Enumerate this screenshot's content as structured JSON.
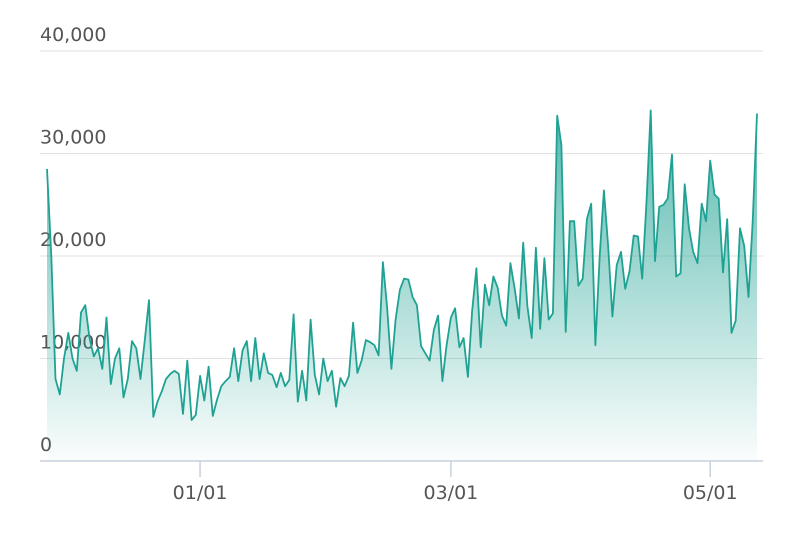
{
  "chart_data": {
    "type": "area",
    "x": [
      "11/26",
      "11/27",
      "11/28",
      "11/29",
      "11/30",
      "12/01",
      "12/02",
      "12/03",
      "12/04",
      "12/05",
      "12/06",
      "12/07",
      "12/08",
      "12/09",
      "12/10",
      "12/11",
      "12/12",
      "12/13",
      "12/14",
      "12/15",
      "12/16",
      "12/17",
      "12/18",
      "12/19",
      "12/20",
      "12/21",
      "12/22",
      "12/23",
      "12/24",
      "12/25",
      "12/26",
      "12/27",
      "12/28",
      "12/29",
      "12/30",
      "12/31",
      "01/01",
      "01/02",
      "01/03",
      "01/04",
      "01/05",
      "01/06",
      "01/07",
      "01/08",
      "01/09",
      "01/10",
      "01/11",
      "01/12",
      "01/13",
      "01/14",
      "01/15",
      "01/16",
      "01/17",
      "01/18",
      "01/19",
      "01/20",
      "01/21",
      "01/22",
      "01/23",
      "01/24",
      "01/25",
      "01/26",
      "01/27",
      "01/28",
      "01/29",
      "01/30",
      "01/31",
      "02/01",
      "02/02",
      "02/03",
      "02/04",
      "02/05",
      "02/06",
      "02/07",
      "02/08",
      "02/09",
      "02/10",
      "02/11",
      "02/12",
      "02/13",
      "02/14",
      "02/15",
      "02/16",
      "02/17",
      "02/18",
      "02/19",
      "02/20",
      "02/21",
      "02/22",
      "02/23",
      "02/24",
      "02/25",
      "02/26",
      "02/27",
      "02/28",
      "03/01",
      "03/02",
      "03/03",
      "03/04",
      "03/05",
      "03/06",
      "03/07",
      "03/08",
      "03/09",
      "03/10",
      "03/11",
      "03/12",
      "03/13",
      "03/14",
      "03/15",
      "03/16",
      "03/17",
      "03/18",
      "03/19",
      "03/20",
      "03/21",
      "03/22",
      "03/23",
      "03/24",
      "03/25",
      "03/26",
      "03/27",
      "03/28",
      "03/29",
      "03/30",
      "03/31",
      "04/01",
      "04/02",
      "04/03",
      "04/04",
      "04/05",
      "04/06",
      "04/07",
      "04/08",
      "04/09",
      "04/10",
      "04/11",
      "04/12",
      "04/13",
      "04/14",
      "04/15",
      "04/16",
      "04/17",
      "04/18",
      "04/19",
      "04/20",
      "04/21",
      "04/22",
      "04/23",
      "04/24",
      "04/25",
      "04/26",
      "04/27",
      "04/28",
      "04/29",
      "04/30",
      "05/01",
      "05/02",
      "05/03",
      "05/04",
      "05/05",
      "05/06",
      "05/07",
      "05/08",
      "05/09",
      "05/10",
      "05/11",
      "05/12"
    ],
    "values": [
      28500,
      20000,
      8000,
      6500,
      10000,
      12500,
      10000,
      8800,
      14500,
      15200,
      12000,
      10200,
      11000,
      9000,
      14000,
      7500,
      10000,
      11000,
      6200,
      8000,
      11700,
      11000,
      8000,
      11800,
      15700,
      4300,
      5800,
      6800,
      8000,
      8500,
      8800,
      8500,
      4600,
      9800,
      4000,
      4500,
      8300,
      5900,
      9200,
      4400,
      6000,
      7300,
      7800,
      8200,
      11000,
      7800,
      10800,
      11700,
      7800,
      12000,
      8000,
      10500,
      8600,
      8400,
      7200,
      8600,
      7300,
      7900,
      14300,
      5800,
      8800,
      5900,
      13800,
      8400,
      6500,
      10000,
      7800,
      8800,
      5300,
      8100,
      7300,
      8300,
      13500,
      8600,
      9800,
      11800,
      11600,
      11300,
      10300,
      19400,
      15000,
      9000,
      13800,
      16700,
      17800,
      17700,
      16000,
      15200,
      11200,
      10500,
      9800,
      12800,
      14200,
      7800,
      11300,
      14000,
      14900,
      11100,
      12000,
      8200,
      14600,
      18800,
      11100,
      17200,
      15200,
      18000,
      16900,
      14200,
      13200,
      19300,
      16800,
      13900,
      21300,
      15100,
      12000,
      20800,
      12900,
      19800,
      13800,
      14400,
      33700,
      30800,
      12600,
      23400,
      23400,
      17100,
      17800,
      23600,
      25100,
      11300,
      20000,
      26400,
      20900,
      14100,
      19100,
      20400,
      16800,
      18500,
      22000,
      21900,
      17800,
      25300,
      34200,
      19500,
      24800,
      25000,
      25600,
      29900,
      18000,
      18300,
      27000,
      22700,
      20400,
      19300,
      25100,
      23400,
      29300,
      26000,
      25600,
      18400,
      23600,
      12500,
      13700,
      22700,
      21000,
      16000,
      23400,
      33900
    ],
    "color": "#1fa293",
    "ylim": [
      0,
      40000
    ],
    "yticks": [
      0,
      {
        "value": 10000,
        "label": "10,000"
      },
      {
        "value": 20000,
        "label": "20,000"
      },
      {
        "value": 30000,
        "label": "30,000"
      },
      {
        "value": 40000,
        "label": "40,000"
      }
    ],
    "xticks": [
      "01/01",
      "03/01",
      "05/01"
    ],
    "grid": true
  }
}
